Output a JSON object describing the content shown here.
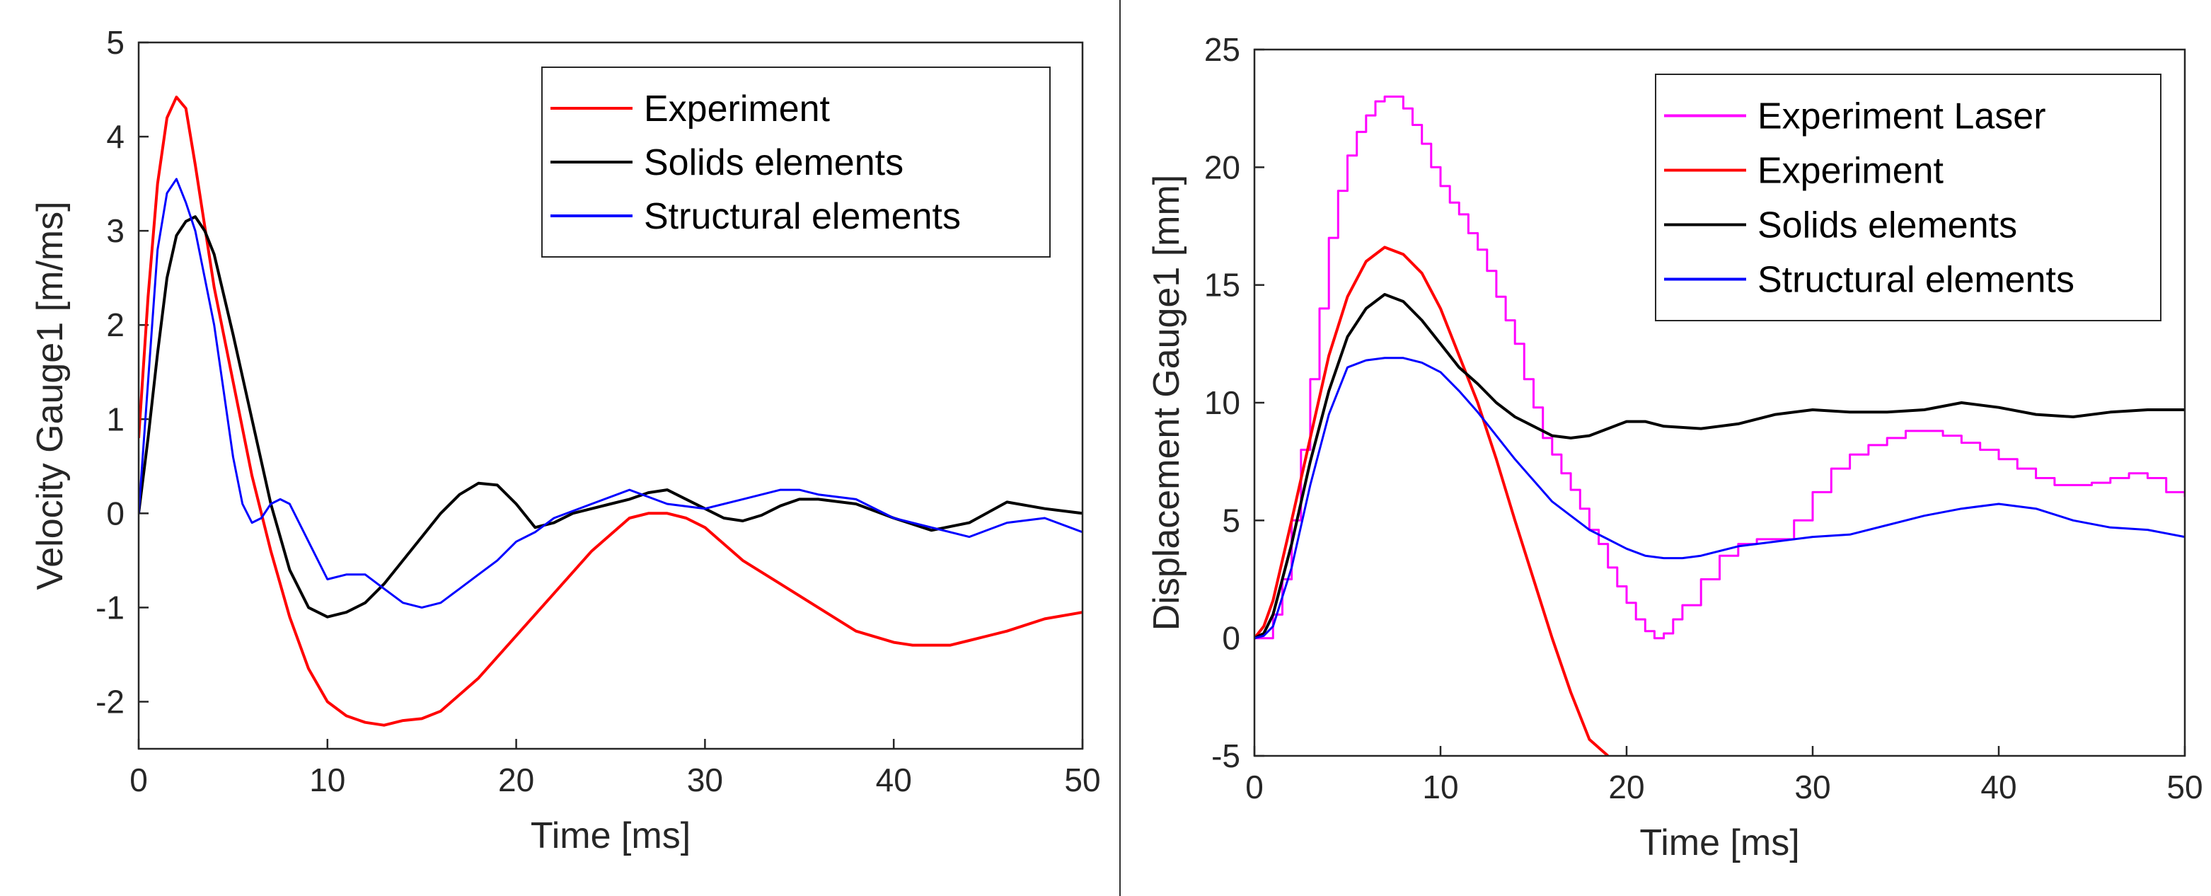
{
  "chart_data": [
    {
      "type": "line",
      "xlabel": "Time [ms]",
      "ylabel": "Velocity Gauge1 [m/ms]",
      "xlim": [
        0,
        50
      ],
      "ylim": [
        -2.5,
        5
      ],
      "xticks": [
        "0",
        "10",
        "20",
        "30",
        "40",
        "50"
      ],
      "yticks": [
        "-2",
        "-1",
        "0",
        "1",
        "2",
        "3",
        "4",
        "5"
      ],
      "legend_position": "top-right",
      "grid": false,
      "series": [
        {
          "name": "Experiment",
          "color": "#ff0000",
          "x": [
            0,
            0.5,
            1,
            1.5,
            2,
            2.5,
            3,
            4,
            5,
            6,
            7,
            8,
            9,
            10,
            11,
            12,
            13,
            14,
            15,
            16,
            18,
            20,
            22,
            24,
            26,
            27,
            28,
            29,
            30,
            32,
            34,
            36,
            38,
            40,
            41,
            42,
            43,
            44,
            46,
            48,
            50
          ],
          "y": [
            0.8,
            2.3,
            3.5,
            4.2,
            4.42,
            4.3,
            3.7,
            2.4,
            1.4,
            0.4,
            -0.4,
            -1.1,
            -1.65,
            -2.0,
            -2.15,
            -2.22,
            -2.25,
            -2.2,
            -2.18,
            -2.1,
            -1.75,
            -1.3,
            -0.85,
            -0.4,
            -0.05,
            0,
            0,
            -0.05,
            -0.15,
            -0.5,
            -0.75,
            -1.0,
            -1.25,
            -1.37,
            -1.4,
            -1.4,
            -1.4,
            -1.35,
            -1.25,
            -1.12,
            -1.05
          ]
        },
        {
          "name": "Solids elements",
          "color": "#000000",
          "x": [
            0,
            0.5,
            1,
            1.5,
            2,
            2.5,
            3,
            3.5,
            4,
            5,
            6,
            7,
            8,
            9,
            10,
            11,
            12,
            13,
            14,
            15,
            16,
            17,
            18,
            19,
            20,
            21,
            22,
            23,
            24,
            25,
            26,
            27,
            28,
            29,
            30,
            31,
            32,
            33,
            34,
            35,
            36,
            38,
            40,
            42,
            44,
            46,
            48,
            50
          ],
          "y": [
            0,
            0.8,
            1.7,
            2.5,
            2.95,
            3.1,
            3.15,
            3.0,
            2.75,
            1.9,
            1.0,
            0.1,
            -0.6,
            -1.0,
            -1.1,
            -1.05,
            -0.95,
            -0.75,
            -0.5,
            -0.25,
            0,
            0.2,
            0.32,
            0.3,
            0.1,
            -0.15,
            -0.1,
            0,
            0.05,
            0.1,
            0.15,
            0.22,
            0.25,
            0.15,
            0.05,
            -0.05,
            -0.08,
            -0.02,
            0.08,
            0.15,
            0.15,
            0.1,
            -0.05,
            -0.18,
            -0.1,
            0.12,
            0.05,
            0
          ]
        },
        {
          "name": "Structural elements",
          "color": "#0000ff",
          "x": [
            0,
            0.5,
            1,
            1.5,
            2,
            2.5,
            3,
            3.5,
            4,
            4.5,
            5,
            5.5,
            6,
            6.5,
            7,
            7.5,
            8,
            9,
            10,
            11,
            12,
            13,
            14,
            15,
            16,
            17,
            18,
            19,
            20,
            21,
            22,
            24,
            26,
            28,
            30,
            32,
            34,
            35,
            36,
            38,
            40,
            42,
            44,
            46,
            48,
            50
          ],
          "y": [
            0,
            1.4,
            2.8,
            3.4,
            3.55,
            3.3,
            3.0,
            2.5,
            2.0,
            1.3,
            0.6,
            0.1,
            -0.1,
            -0.05,
            0.1,
            0.15,
            0.1,
            -0.3,
            -0.7,
            -0.65,
            -0.65,
            -0.8,
            -0.95,
            -1.0,
            -0.95,
            -0.8,
            -0.65,
            -0.5,
            -0.3,
            -0.2,
            -0.05,
            0.1,
            0.25,
            0.1,
            0.05,
            0.15,
            0.25,
            0.25,
            0.2,
            0.15,
            -0.05,
            -0.15,
            -0.25,
            -0.1,
            -0.05,
            -0.2
          ]
        }
      ]
    },
    {
      "type": "line",
      "xlabel": "Time [ms]",
      "ylabel": "Displacement Gauge1 [mm]",
      "xlim": [
        0,
        50
      ],
      "ylim": [
        -5,
        25
      ],
      "xticks": [
        "0",
        "10",
        "20",
        "30",
        "40",
        "50"
      ],
      "yticks": [
        "-5",
        "0",
        "5",
        "10",
        "15",
        "20",
        "25"
      ],
      "legend_position": "top-right",
      "grid": false,
      "series": [
        {
          "name": "Experiment Laser",
          "color": "#ff00ff",
          "step": true,
          "x": [
            0,
            1,
            1.5,
            2,
            2.5,
            3,
            3.5,
            4,
            4.5,
            5,
            5.5,
            6,
            6.5,
            7,
            7.5,
            8,
            8.5,
            9,
            9.5,
            10,
            10.5,
            11,
            11.5,
            12,
            12.5,
            13,
            13.5,
            14,
            14.5,
            15,
            15.5,
            16,
            16.5,
            17,
            17.5,
            18,
            18.5,
            19,
            19.5,
            20,
            20.5,
            21,
            21.5,
            22,
            22.5,
            23,
            24,
            25,
            26,
            27,
            28,
            29,
            30,
            31,
            32,
            33,
            34,
            35,
            36,
            37,
            38,
            39,
            40,
            41,
            42,
            43,
            44,
            45,
            46,
            47,
            48,
            49,
            50
          ],
          "y": [
            0,
            1,
            2.5,
            5,
            8,
            11,
            14,
            17,
            19,
            20.5,
            21.5,
            22.2,
            22.8,
            23,
            23,
            22.5,
            21.8,
            21,
            20,
            19.2,
            18.5,
            18,
            17.2,
            16.5,
            15.6,
            14.5,
            13.5,
            12.5,
            11,
            9.8,
            8.5,
            7.8,
            7,
            6.3,
            5.5,
            4.6,
            4,
            3,
            2.2,
            1.5,
            0.8,
            0.3,
            0,
            0.2,
            0.8,
            1.4,
            2.5,
            3.5,
            4,
            4.2,
            4.2,
            5,
            6.2,
            7.2,
            7.8,
            8.2,
            8.5,
            8.8,
            8.8,
            8.6,
            8.3,
            8,
            7.6,
            7.2,
            6.8,
            6.5,
            6.5,
            6.6,
            6.8,
            7,
            6.8,
            6.2,
            6
          ]
        },
        {
          "name": "Experiment",
          "color": "#ff0000",
          "x": [
            0,
            0.5,
            1,
            2,
            3,
            4,
            5,
            6,
            7,
            8,
            9,
            10,
            11,
            12,
            13,
            14,
            15,
            16,
            17,
            18,
            19
          ],
          "y": [
            0,
            0.5,
            1.6,
            5,
            8.5,
            12,
            14.5,
            16,
            16.6,
            16.3,
            15.5,
            14,
            12,
            10,
            7.6,
            5,
            2.5,
            0,
            -2.3,
            -4.3,
            -5
          ]
        },
        {
          "name": "Solids elements",
          "color": "#000000",
          "x": [
            0,
            0.5,
            1,
            2,
            3,
            4,
            5,
            6,
            7,
            8,
            9,
            10,
            11,
            12,
            13,
            14,
            15,
            16,
            17,
            18,
            19,
            20,
            21,
            22,
            24,
            26,
            28,
            30,
            32,
            34,
            36,
            38,
            40,
            42,
            44,
            46,
            48,
            50
          ],
          "y": [
            0,
            0.2,
            1,
            4,
            7.5,
            10.5,
            12.8,
            14,
            14.6,
            14.3,
            13.5,
            12.5,
            11.5,
            10.8,
            10,
            9.4,
            9,
            8.6,
            8.5,
            8.6,
            8.9,
            9.2,
            9.2,
            9,
            8.9,
            9.1,
            9.5,
            9.7,
            9.6,
            9.6,
            9.7,
            10,
            9.8,
            9.5,
            9.4,
            9.6,
            9.7,
            9.7
          ]
        },
        {
          "name": "Structural elements",
          "color": "#0000ff",
          "x": [
            0,
            0.5,
            1,
            2,
            3,
            4,
            5,
            6,
            7,
            8,
            9,
            10,
            11,
            12,
            13,
            14,
            15,
            16,
            17,
            18,
            19,
            20,
            21,
            22,
            23,
            24,
            26,
            28,
            30,
            32,
            34,
            36,
            38,
            40,
            42,
            44,
            46,
            48,
            50
          ],
          "y": [
            0,
            0.1,
            0.5,
            3,
            6.5,
            9.5,
            11.5,
            11.8,
            11.9,
            11.9,
            11.7,
            11.3,
            10.5,
            9.6,
            8.6,
            7.6,
            6.7,
            5.8,
            5.2,
            4.6,
            4.2,
            3.8,
            3.5,
            3.4,
            3.4,
            3.5,
            3.9,
            4.1,
            4.3,
            4.4,
            4.8,
            5.2,
            5.5,
            5.7,
            5.5,
            5.0,
            4.7,
            4.6,
            4.3
          ]
        }
      ]
    }
  ]
}
